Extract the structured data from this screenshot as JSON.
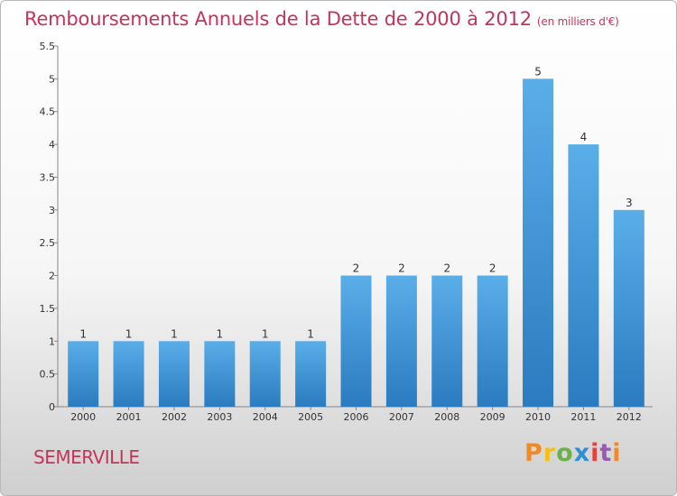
{
  "chart_data": {
    "type": "bar",
    "title": "Remboursements Annuels de la Dette de 2000 à 2012",
    "subtitle": "(en milliers d'€)",
    "categories": [
      "2000",
      "2001",
      "2002",
      "2003",
      "2004",
      "2005",
      "2006",
      "2007",
      "2008",
      "2009",
      "2010",
      "2011",
      "2012"
    ],
    "values": [
      1,
      1,
      1,
      1,
      1,
      1,
      2,
      2,
      2,
      2,
      5,
      4,
      3
    ],
    "ylim": [
      0,
      5.5
    ],
    "yticks": [
      "0",
      "0.5",
      "1",
      "1.5",
      "2",
      "2.5",
      "3",
      "3.5",
      "4",
      "4.5",
      "5",
      "5.5"
    ],
    "grid": false,
    "bar_color": "#4f9fdf"
  },
  "footer": {
    "commune": "SEMERVILLE",
    "logo": "Proxiti"
  }
}
